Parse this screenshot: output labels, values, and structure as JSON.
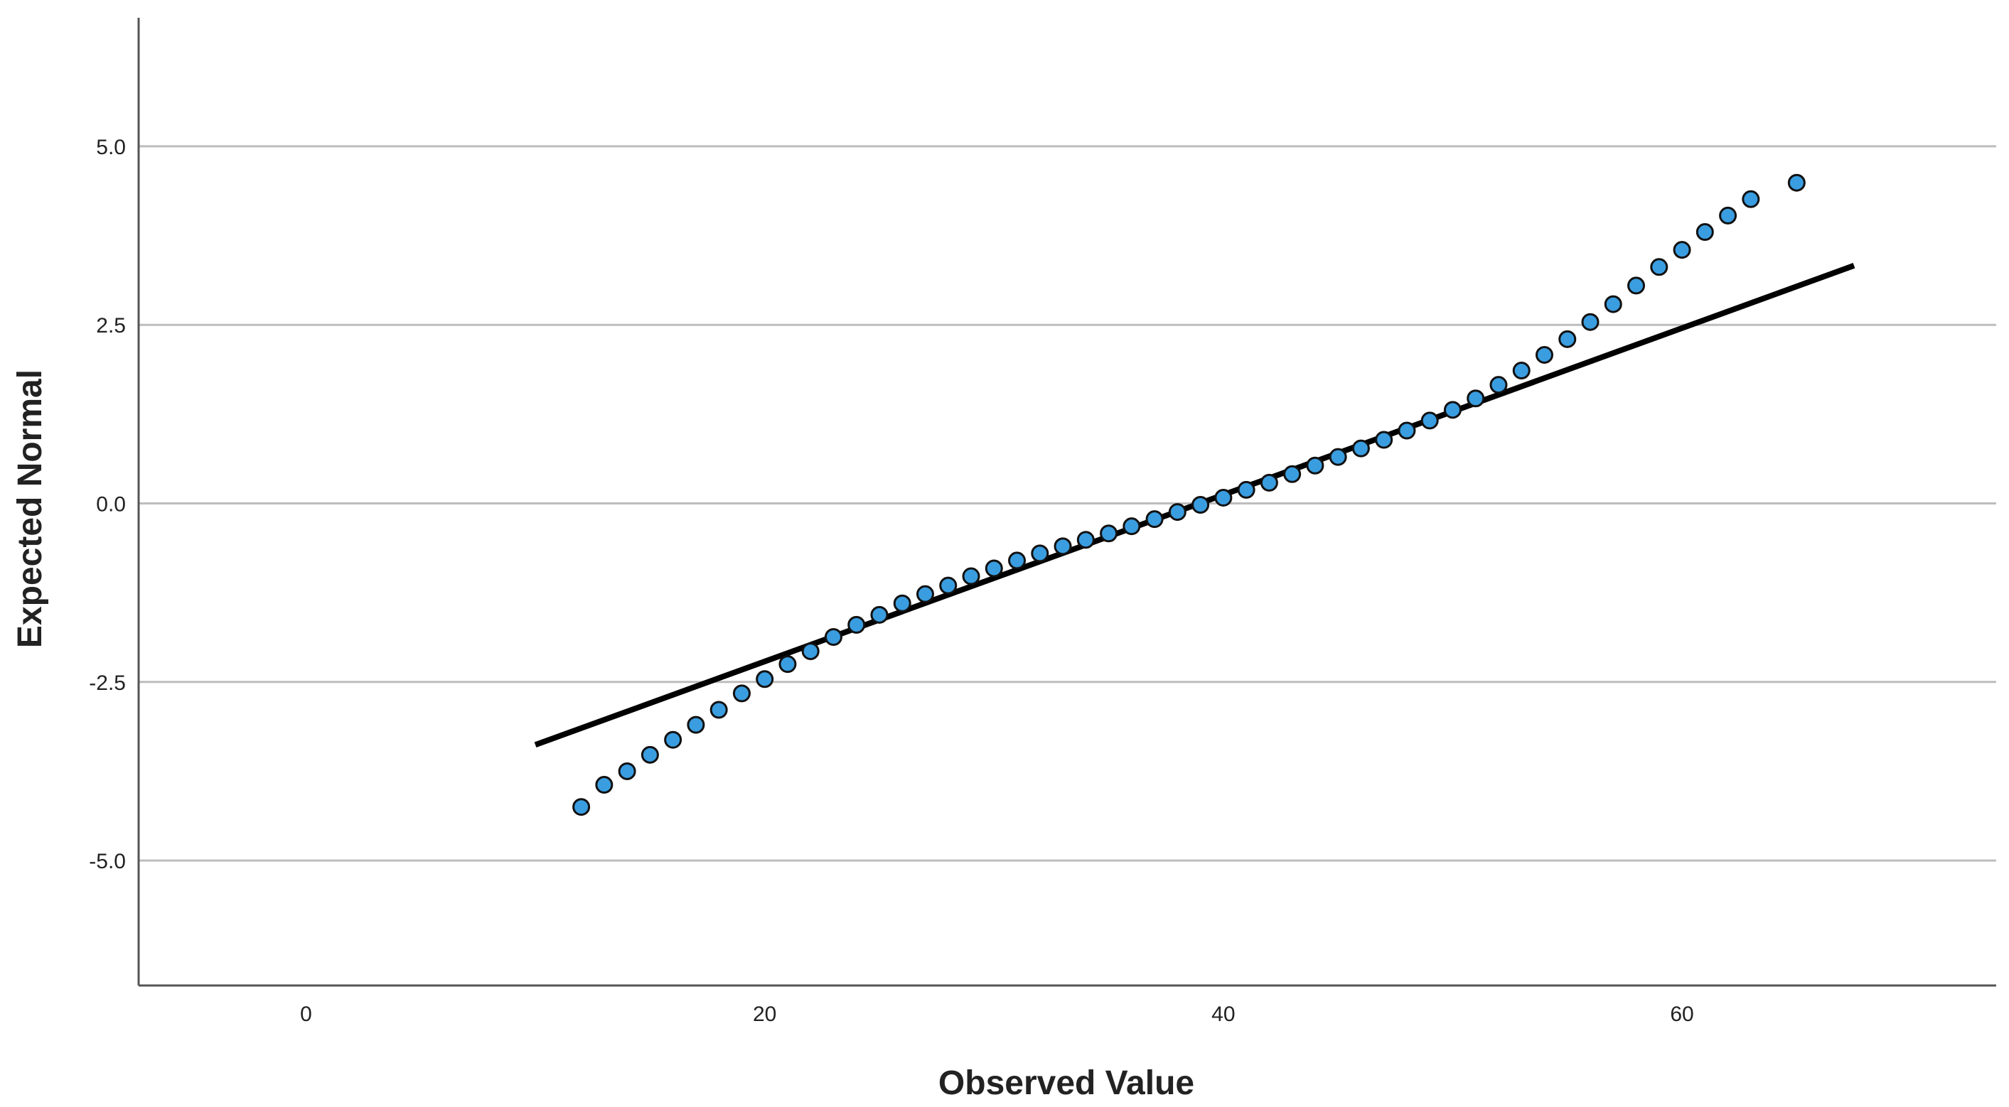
{
  "chart_data": {
    "type": "scatter",
    "xlabel": "Observed Value",
    "ylabel": "Expected Normal",
    "xlim": [
      -7.3,
      73.7
    ],
    "ylim": [
      -6.75,
      6.8
    ],
    "x_ticks": [
      0,
      20,
      40,
      60
    ],
    "y_ticks": [
      5.0,
      2.5,
      0.0,
      -2.5,
      -5.0
    ],
    "x_tick_labels": [
      "0",
      "20",
      "40",
      "60"
    ],
    "y_tick_labels": [
      "5.0",
      "2.5",
      "0.0",
      "-2.5",
      "-5.0"
    ],
    "grid": "horizontal",
    "legend": "none",
    "colors": {
      "point_fill": "#3a9de0",
      "point_edge": "#111111",
      "line": "#000000",
      "grid": "#bdbdbd",
      "axis": "#555555"
    },
    "reference_line": {
      "x": [
        10,
        67.5
      ],
      "y": [
        -3.38,
        3.33
      ]
    },
    "series": [
      {
        "x": [
          12,
          13,
          14,
          15,
          16,
          17,
          18,
          19,
          20,
          21,
          22,
          23,
          24,
          25,
          26,
          27,
          28,
          29,
          30,
          31,
          32,
          33,
          34,
          35,
          36,
          37,
          38,
          39,
          40,
          41,
          42,
          43,
          44,
          45,
          46,
          47,
          48,
          49,
          50,
          51,
          52,
          53,
          54,
          55,
          56,
          57,
          58,
          59,
          60,
          61,
          62,
          63,
          65
        ],
        "y": [
          -4.25,
          -3.94,
          -3.75,
          -3.52,
          -3.31,
          -3.1,
          -2.89,
          -2.66,
          -2.46,
          -2.25,
          -2.07,
          -1.87,
          -1.7,
          -1.56,
          -1.4,
          -1.27,
          -1.15,
          -1.02,
          -0.91,
          -0.8,
          -0.7,
          -0.6,
          -0.51,
          -0.42,
          -0.32,
          -0.22,
          -0.12,
          -0.02,
          0.08,
          0.19,
          0.29,
          0.41,
          0.53,
          0.65,
          0.77,
          0.89,
          1.02,
          1.16,
          1.31,
          1.47,
          1.66,
          1.86,
          2.08,
          2.3,
          2.54,
          2.79,
          3.05,
          3.31,
          3.55,
          3.8,
          4.03,
          4.26,
          4.49
        ]
      }
    ]
  }
}
